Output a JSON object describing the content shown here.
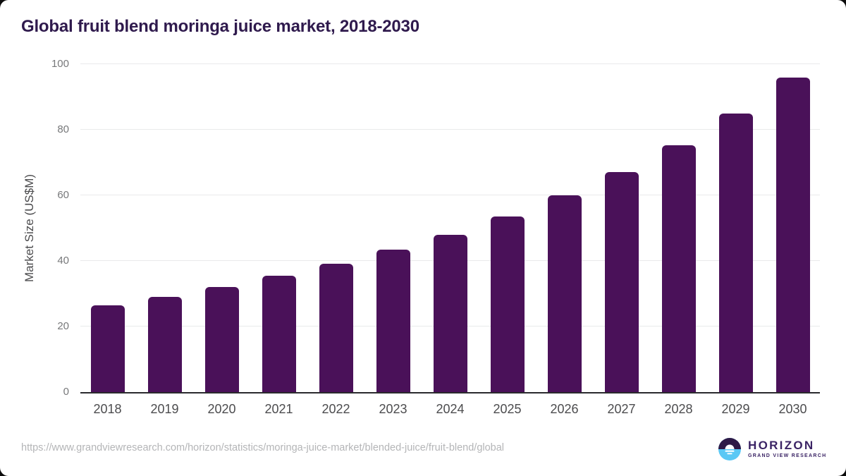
{
  "page": {
    "title": "Global fruit blend moringa juice market, 2018-2030"
  },
  "chart_data": {
    "type": "bar",
    "title": "Global fruit blend moringa juice market, 2018-2030",
    "categories": [
      "2018",
      "2019",
      "2020",
      "2021",
      "2022",
      "2023",
      "2024",
      "2025",
      "2026",
      "2027",
      "2028",
      "2029",
      "2030"
    ],
    "values": [
      26.5,
      29.0,
      32.1,
      35.5,
      39.1,
      43.4,
      48.0,
      53.6,
      59.9,
      67.2,
      75.2,
      85.0,
      95.9
    ],
    "xlabel": "",
    "ylabel": "Market Size (US$M)",
    "ylim": [
      0,
      100
    ],
    "yticks": [
      0,
      20,
      40,
      60,
      80,
      100
    ],
    "grid": "horizontal",
    "legend": "none",
    "bar_color": "#4a1159"
  },
  "footer": {
    "source_url": "https://www.grandviewresearch.com/horizon/statistics/moringa-juice-market/blended-juice/fruit-blend/global",
    "logo": {
      "title": "HORIZON",
      "subtitle": "GRAND VIEW RESEARCH"
    }
  },
  "colors": {
    "bar": "#4a1159",
    "title_text": "#2f1a4d",
    "axis_line": "#2b2b2e",
    "gridline": "#e9eaeb",
    "y_tick_text": "#77787a",
    "x_tick_text": "#4c4c4e",
    "url_text": "#b4b5b7",
    "logo_dark": "#2e1a47",
    "logo_blue": "#5ac8f5",
    "logo_text": "#3b2465"
  }
}
